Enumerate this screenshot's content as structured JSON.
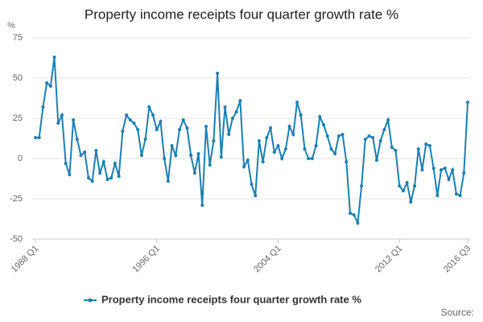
{
  "chart_data": {
    "type": "line",
    "title": "Property income receipts four quarter growth rate %",
    "y_label": "%",
    "source": "Source:",
    "categories": [
      "1988 Q1",
      null,
      null,
      null,
      null,
      null,
      null,
      null,
      null,
      null,
      null,
      null,
      null,
      null,
      null,
      null,
      null,
      null,
      null,
      null,
      null,
      null,
      null,
      null,
      null,
      null,
      null,
      null,
      null,
      null,
      null,
      null,
      "1996 Q1",
      null,
      null,
      null,
      null,
      null,
      null,
      null,
      null,
      null,
      null,
      null,
      null,
      null,
      null,
      null,
      null,
      null,
      null,
      null,
      null,
      null,
      null,
      null,
      null,
      null,
      null,
      null,
      null,
      null,
      null,
      null,
      "2004 Q1",
      null,
      null,
      null,
      null,
      null,
      null,
      null,
      null,
      null,
      null,
      null,
      null,
      null,
      null,
      null,
      null,
      null,
      null,
      null,
      null,
      null,
      null,
      null,
      null,
      null,
      null,
      null,
      null,
      null,
      null,
      null,
      "2012 Q1",
      null,
      null,
      null,
      null,
      null,
      null,
      null,
      null,
      null,
      null,
      null,
      null,
      null,
      null,
      null,
      null,
      null,
      "2016 Q3"
    ],
    "series": [
      {
        "name": "Property income receipts four quarter growth rate %",
        "color": "#1b7fb3",
        "values": [
          13,
          13,
          32,
          47,
          45,
          63,
          22,
          27,
          -3,
          -10,
          24,
          12,
          2,
          4,
          -12,
          -14,
          5,
          -9,
          -2,
          -13,
          -12,
          -3,
          -11,
          17,
          27,
          24,
          22,
          18,
          2,
          12,
          32,
          27,
          18,
          23,
          0,
          -14,
          8,
          2,
          18,
          24,
          19,
          2,
          -9,
          3,
          -29,
          20,
          -4,
          11,
          53,
          1,
          32,
          15,
          25,
          29,
          36,
          -5,
          -1,
          -16,
          -23,
          11,
          -2,
          13,
          19,
          4,
          8,
          0,
          6,
          20,
          15,
          35,
          27,
          6,
          0,
          0,
          8,
          26,
          21,
          14,
          6,
          3,
          14,
          15,
          -2,
          -34,
          -35,
          -40,
          -17,
          12,
          14,
          13,
          -1,
          11,
          18,
          24,
          7,
          5,
          -17,
          -20,
          -15,
          -27,
          -17,
          6,
          -7,
          9,
          8,
          -6,
          -23,
          -7,
          -6,
          -13,
          -7,
          -22,
          -23,
          -9,
          35
        ]
      }
    ],
    "ylim": [
      -50,
      75
    ],
    "yticks": [
      75,
      50,
      25,
      0,
      -25,
      -50
    ],
    "grid": true,
    "legend": "bottom"
  }
}
